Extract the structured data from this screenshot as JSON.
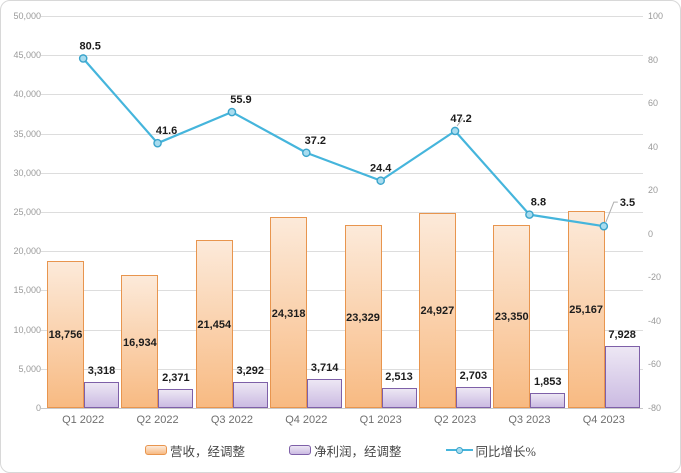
{
  "chart_data": {
    "type": "combo",
    "title": "",
    "categories": [
      "Q1 2022",
      "Q2 2022",
      "Q3 2022",
      "Q4 2022",
      "Q1 2023",
      "Q2 2023",
      "Q3 2023",
      "Q4 2023"
    ],
    "series": [
      {
        "name": "营收，经调整",
        "type": "bar",
        "axis": "left",
        "values": [
          18756,
          16934,
          21454,
          24318,
          23329,
          24927,
          23350,
          25167
        ],
        "labels": [
          "18,756",
          "16,934",
          "21,454",
          "24,318",
          "23,329",
          "24,927",
          "23,350",
          "25,167"
        ],
        "fill_top": "#FCEADA",
        "fill_bottom": "#F8BA82",
        "border": "#E8954E"
      },
      {
        "name": "净利润，经调整",
        "type": "bar",
        "axis": "left",
        "values": [
          3318,
          2371,
          3292,
          3714,
          2513,
          2703,
          1853,
          7928
        ],
        "labels": [
          "3,318",
          "2,371",
          "3,292",
          "3,714",
          "2,513",
          "2,703",
          "1,853",
          "7,928"
        ],
        "fill_top": "#EDE7F4",
        "fill_bottom": "#CBBBE2",
        "border": "#7E60A8"
      },
      {
        "name": "同比增长%",
        "type": "line",
        "axis": "right",
        "values": [
          80.5,
          41.6,
          55.9,
          37.2,
          24.4,
          47.2,
          8.8,
          3.5
        ],
        "labels": [
          "80.5",
          "41.6",
          "55.9",
          "37.2",
          "24.4",
          "47.2",
          "8.8",
          "3.5"
        ],
        "color": "#45B5DC",
        "marker_fill": "#A8DCEF",
        "marker_border": "#3BA4CB"
      }
    ],
    "left_axis": {
      "min": 0,
      "max": 50000,
      "step": 5000,
      "tick_labels": [
        "50,000",
        "45,000",
        "40,000",
        "35,000",
        "30,000",
        "25,000",
        "20,000",
        "15,000",
        "10,000",
        "5,000",
        "0"
      ]
    },
    "right_axis": {
      "min": -80,
      "max": 100,
      "step": 20,
      "tick_labels": [
        "100",
        "80",
        "60",
        "40",
        "20",
        "0",
        "-20",
        "-40",
        "-60",
        "-80"
      ]
    },
    "grid": true,
    "legend_position": "bottom",
    "colors": {
      "gridline": "#DDDDDD",
      "axis_text": "#9A9A9A",
      "category_text": "#6F6F6F",
      "data_label_text": "#1C1C1C",
      "leader_line": "#AFAFAF"
    }
  }
}
